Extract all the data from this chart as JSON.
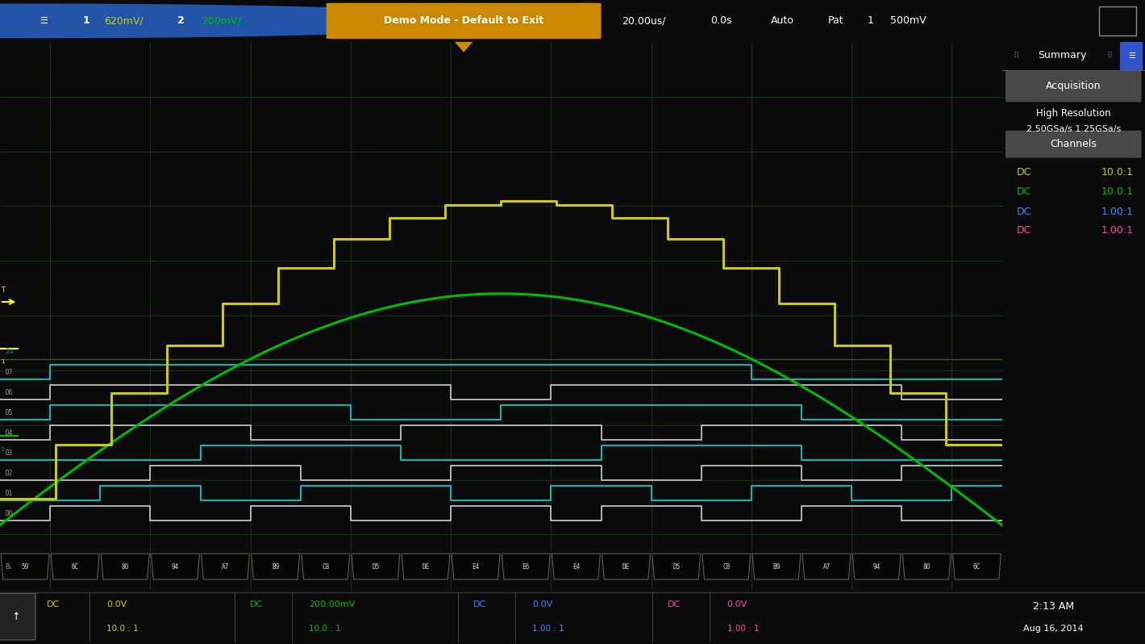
{
  "bg_color": "#0a0a0a",
  "screen_bg": "#000000",
  "grid_color": "#1e3a1e",
  "top_bar_bg": "#0a0a0a",
  "sidebar_bg": "#282828",
  "bottom_bar_bg": "#0a0a0a",
  "yellow_color": "#cccc00",
  "green_color": "#00bb00",
  "cyan_color": "#00cccc",
  "white_color": "#c8c8c8",
  "bus_labels": [
    "59",
    "6C",
    "80",
    "94",
    "A7",
    "B9",
    "C8",
    "D5",
    "DE",
    "E4",
    "E6",
    "E4",
    "DE",
    "D5",
    "C8",
    "B9",
    "A7",
    "94",
    "80",
    "6C"
  ],
  "top_items_left": [
    {
      "text": "1",
      "color": "#ffffff",
      "fs": 9
    },
    {
      "text": "620mV/",
      "color": "#cccc00",
      "fs": 9
    },
    {
      "text": "2",
      "color": "#ffffff",
      "fs": 9
    },
    {
      "text": "200mV/",
      "color": "#00bb00",
      "fs": 9
    }
  ],
  "demo_mode_text": "Demo Mode - Default to Exit",
  "demo_mode_bg": "#cc8800",
  "top_items_right": [
    {
      "text": "20.00us/",
      "color": "#ffffff",
      "fs": 9
    },
    {
      "text": "0.0s",
      "color": "#ffffff",
      "fs": 9
    },
    {
      "text": "Auto",
      "color": "#ffffff",
      "fs": 9
    },
    {
      "text": "Pat",
      "color": "#ffffff",
      "fs": 9
    },
    {
      "text": "1",
      "color": "#ffffff",
      "fs": 9
    },
    {
      "text": "500mV",
      "color": "#ffffff",
      "fs": 9
    }
  ],
  "sidebar_title": "Summary",
  "sidebar_acq": "Acquisition",
  "sidebar_res": "High Resolution",
  "sidebar_rate": "2.50GSa/s 1.25GSa/s",
  "sidebar_ch": "Channels",
  "ch_entries": [
    {
      "dc": "DC",
      "val": "10.0:1",
      "color": "#cccc00"
    },
    {
      "dc": "DC",
      "val": "10.0:1",
      "color": "#00bb00"
    },
    {
      "dc": "DC",
      "val": "1.00:1",
      "color": "#4488ff"
    },
    {
      "dc": "DC",
      "val": "1.00:1",
      "color": "#ff44aa"
    }
  ],
  "bot_ch": [
    {
      "dc": "DC",
      "v": "0.0V",
      "r": "10.0 : 1",
      "color": "#cccc00"
    },
    {
      "dc": "DC",
      "v": "200.00mV",
      "r": "10.0 : 1",
      "color": "#00bb00"
    },
    {
      "dc": "DC",
      "v": "0.0V",
      "r": "1.00 : 1",
      "color": "#4488ff"
    },
    {
      "dc": "DC",
      "v": "0.0V",
      "r": "1.00 : 1",
      "color": "#ff44aa"
    }
  ],
  "bot_time": "2:13 AM",
  "bot_date": "Aug 16, 2014",
  "digital_patterns": [
    [
      0,
      1,
      1,
      0,
      0,
      1,
      1,
      0,
      0,
      1,
      1,
      0,
      1,
      1,
      0,
      0,
      1,
      1,
      0,
      0
    ],
    [
      0,
      0,
      1,
      1,
      0,
      0,
      1,
      1,
      1,
      0,
      0,
      1,
      1,
      0,
      0,
      1,
      1,
      0,
      0,
      1
    ],
    [
      0,
      0,
      0,
      1,
      1,
      1,
      0,
      0,
      0,
      1,
      1,
      1,
      0,
      0,
      1,
      1,
      0,
      0,
      1,
      1
    ],
    [
      0,
      0,
      0,
      0,
      1,
      1,
      1,
      1,
      0,
      0,
      0,
      0,
      1,
      1,
      1,
      1,
      0,
      0,
      0,
      0
    ],
    [
      0,
      1,
      1,
      1,
      1,
      0,
      0,
      0,
      1,
      1,
      1,
      1,
      0,
      0,
      1,
      1,
      1,
      1,
      0,
      0
    ],
    [
      0,
      1,
      1,
      1,
      1,
      1,
      1,
      0,
      0,
      0,
      1,
      1,
      1,
      1,
      1,
      1,
      0,
      0,
      0,
      0
    ],
    [
      0,
      1,
      1,
      1,
      1,
      1,
      1,
      1,
      1,
      0,
      0,
      1,
      1,
      1,
      1,
      1,
      1,
      1,
      0,
      0
    ],
    [
      0,
      1,
      1,
      1,
      1,
      1,
      1,
      1,
      1,
      1,
      1,
      1,
      1,
      1,
      1,
      0,
      0,
      0,
      0,
      0
    ]
  ],
  "digital_colors": [
    "#c0c0c0",
    "#00cccc",
    "#c0c0c0",
    "#00cccc",
    "#c0c0c0",
    "#00cccc",
    "#c0c0c0",
    "#00cccc"
  ]
}
